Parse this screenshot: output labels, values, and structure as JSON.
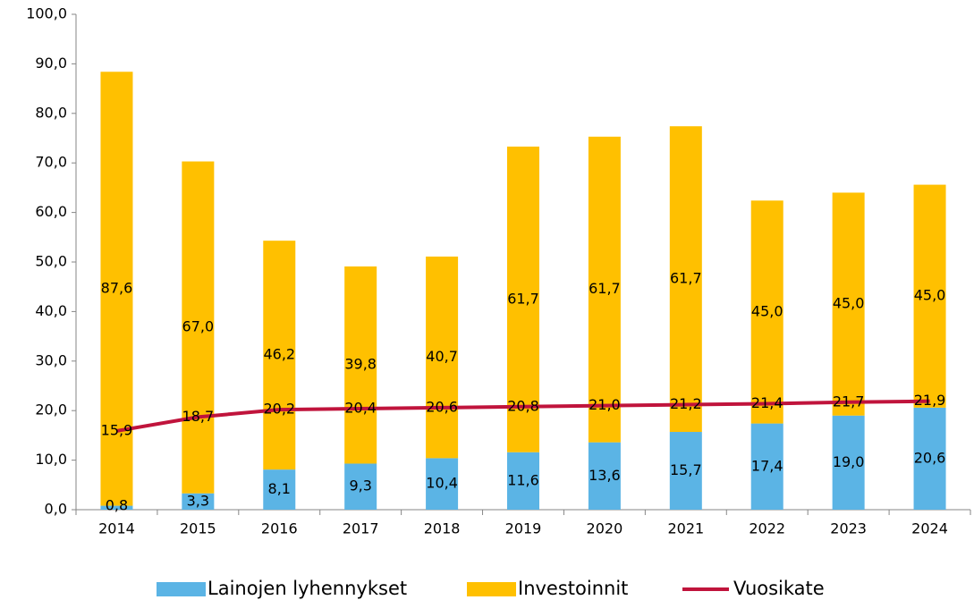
{
  "chart_data": {
    "type": "bar",
    "stacked": true,
    "categories": [
      "2014",
      "2015",
      "2016",
      "2017",
      "2018",
      "2019",
      "2020",
      "2021",
      "2022",
      "2023",
      "2024"
    ],
    "series": [
      {
        "name": "Lainojen lyhennykset",
        "type": "bar",
        "color": "#5bb4e5",
        "values": [
          0.8,
          3.3,
          8.1,
          9.3,
          10.4,
          11.6,
          13.6,
          15.7,
          17.4,
          19.0,
          20.6
        ],
        "value_labels": [
          "0,8",
          "3,3",
          "8,1",
          "9,3",
          "10,4",
          "11,6",
          "13,6",
          "15,7",
          "17,4",
          "19,0",
          "20,6"
        ]
      },
      {
        "name": "Investoinnit",
        "type": "bar",
        "color": "#ffc000",
        "values": [
          87.6,
          67.0,
          46.2,
          39.8,
          40.7,
          61.7,
          61.7,
          61.7,
          45.0,
          45.0,
          45.0
        ],
        "value_labels": [
          "87,6",
          "67,0",
          "46,2",
          "39,8",
          "40,7",
          "61,7",
          "61,7",
          "61,7",
          "45,0",
          "45,0",
          "45,0"
        ]
      },
      {
        "name": "Vuosikate",
        "type": "line",
        "color": "#c0143c",
        "values": [
          15.9,
          18.7,
          20.2,
          20.4,
          20.6,
          20.8,
          21.0,
          21.2,
          21.4,
          21.7,
          21.9
        ],
        "value_labels": [
          "15,9",
          "18,7",
          "20,2",
          "20,4",
          "20,6",
          "20,8",
          "21,0",
          "21,2",
          "21,4",
          "21,7",
          "21,9"
        ]
      }
    ],
    "ylim": [
      0,
      100
    ],
    "yticks": [
      {
        "value": 0,
        "label": "0,0"
      },
      {
        "value": 10,
        "label": "10,0"
      },
      {
        "value": 20,
        "label": "20,0"
      },
      {
        "value": 30,
        "label": "30,0"
      },
      {
        "value": 40,
        "label": "40,0"
      },
      {
        "value": 50,
        "label": "50,0"
      },
      {
        "value": 60,
        "label": "60,0"
      },
      {
        "value": 70,
        "label": "70,0"
      },
      {
        "value": 80,
        "label": "80,0"
      },
      {
        "value": 90,
        "label": "90,0"
      },
      {
        "value": 100,
        "label": "100,0"
      }
    ],
    "grid": false,
    "legend": "bottom"
  }
}
